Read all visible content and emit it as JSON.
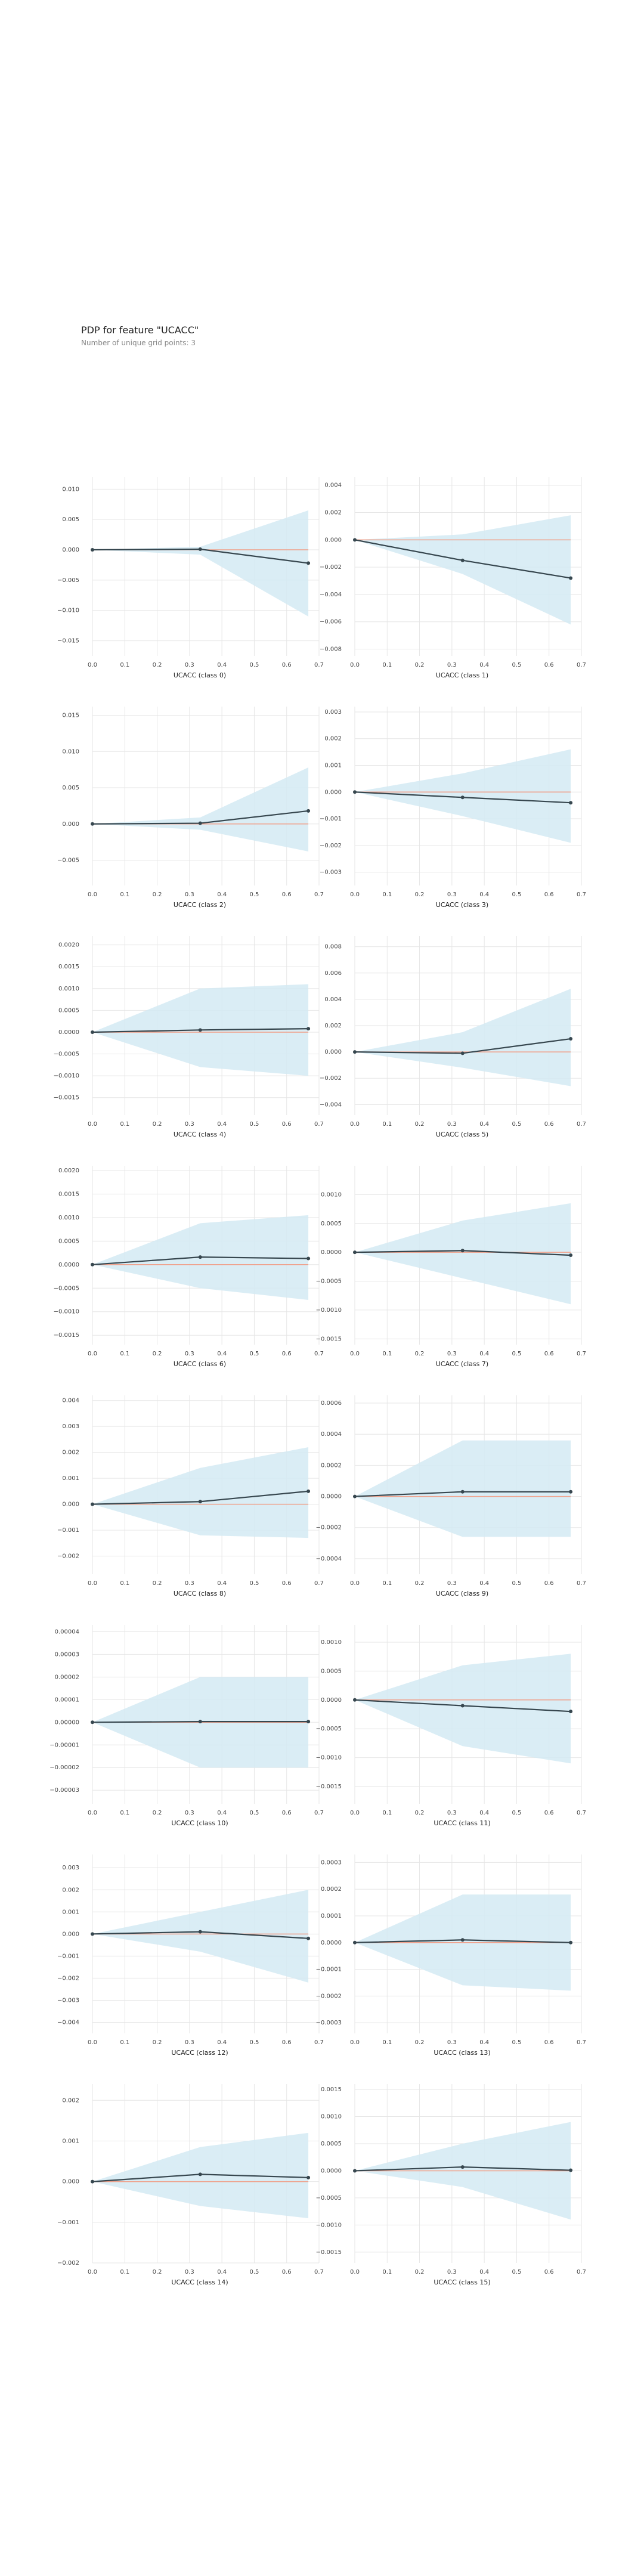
{
  "header": {
    "title": "PDP for feature \"UCACC\"",
    "subtitle": "Number of unique grid points: 3"
  },
  "colors": {
    "band": "#d4eaf3",
    "line": "#37474f",
    "zero": "#f0a08a",
    "grid": "#e6e6e6"
  },
  "chart_data": [
    {
      "type": "line",
      "xlabel": "UCACC (class 0)",
      "x": [
        0,
        0.333,
        0.667
      ],
      "y": [
        0,
        0.0001,
        -0.0022
      ],
      "band_upper": [
        0,
        0.0005,
        0.0065
      ],
      "band_lower": [
        0,
        -0.0008,
        -0.011
      ],
      "xticks": [
        "0.0",
        "0.1",
        "0.2",
        "0.3",
        "0.4",
        "0.5",
        "0.6",
        "0.7"
      ],
      "xlim": [
        0,
        0.7
      ],
      "yticks": [
        0.01,
        0.005,
        0.0,
        -0.005,
        -0.01,
        -0.015
      ],
      "ytick_labels": [
        "0.010",
        "0.005",
        "0.000",
        "−0.005",
        "−0.010",
        "−0.015"
      ],
      "ylim": [
        -0.0175,
        0.012
      ]
    },
    {
      "type": "line",
      "xlabel": "UCACC (class 1)",
      "x": [
        0,
        0.333,
        0.667
      ],
      "y": [
        0,
        -0.0015,
        -0.0028
      ],
      "band_upper": [
        0,
        0.0004,
        0.0018
      ],
      "band_lower": [
        0,
        -0.0025,
        -0.0062
      ],
      "xticks": [
        "0.0",
        "0.1",
        "0.2",
        "0.3",
        "0.4",
        "0.5",
        "0.6",
        "0.7"
      ],
      "xlim": [
        0,
        0.7
      ],
      "yticks": [
        0.004,
        0.002,
        0.0,
        -0.002,
        -0.004,
        -0.006,
        -0.008
      ],
      "ytick_labels": [
        "0.004",
        "0.002",
        "0.000",
        "−0.002",
        "−0.004",
        "−0.006",
        "−0.008"
      ],
      "ylim": [
        -0.0085,
        0.0046
      ]
    },
    {
      "type": "line",
      "xlabel": "UCACC (class 2)",
      "x": [
        0,
        0.333,
        0.667
      ],
      "y": [
        0,
        0.0001,
        0.0018
      ],
      "band_upper": [
        0,
        0.0009,
        0.0078
      ],
      "band_lower": [
        0,
        -0.0008,
        -0.0038
      ],
      "xticks": [
        "0.0",
        "0.1",
        "0.2",
        "0.3",
        "0.4",
        "0.5",
        "0.6",
        "0.7"
      ],
      "xlim": [
        0,
        0.7
      ],
      "yticks": [
        0.015,
        0.01,
        0.005,
        0.0,
        -0.005
      ],
      "ytick_labels": [
        "0.015",
        "0.010",
        "0.005",
        "0.000",
        "−0.005"
      ],
      "ylim": [
        -0.0085,
        0.0162
      ]
    },
    {
      "type": "line",
      "xlabel": "UCACC (class 3)",
      "x": [
        0,
        0.333,
        0.667
      ],
      "y": [
        0,
        -0.0002,
        -0.0004
      ],
      "band_upper": [
        0,
        0.0007,
        0.0016
      ],
      "band_lower": [
        0,
        -0.0009,
        -0.0019
      ],
      "xticks": [
        "0.0",
        "0.1",
        "0.2",
        "0.3",
        "0.4",
        "0.5",
        "0.6",
        "0.7"
      ],
      "xlim": [
        0,
        0.7
      ],
      "yticks": [
        0.003,
        0.002,
        0.001,
        0.0,
        -0.001,
        -0.002,
        -0.003
      ],
      "ytick_labels": [
        "0.003",
        "0.002",
        "0.001",
        "0.000",
        "−0.001",
        "−0.002",
        "−0.003"
      ],
      "ylim": [
        -0.0035,
        0.0032
      ]
    },
    {
      "type": "line",
      "xlabel": "UCACC (class 4)",
      "x": [
        0,
        0.333,
        0.667
      ],
      "y": [
        0,
        5e-05,
        8e-05
      ],
      "band_upper": [
        0,
        0.001,
        0.0011
      ],
      "band_lower": [
        0,
        -0.0008,
        -0.001
      ],
      "xticks": [
        "0.0",
        "0.1",
        "0.2",
        "0.3",
        "0.4",
        "0.5",
        "0.6",
        "0.7"
      ],
      "xlim": [
        0,
        0.7
      ],
      "yticks": [
        0.002,
        0.0015,
        0.001,
        0.0005,
        0.0,
        -0.0005,
        -0.001,
        -0.0015
      ],
      "ytick_labels": [
        "0.0020",
        "0.0015",
        "0.0010",
        "0.0005",
        "0.0000",
        "−0.0005",
        "−0.0010",
        "−0.0015"
      ],
      "ylim": [
        -0.0019,
        0.0022
      ]
    },
    {
      "type": "line",
      "xlabel": "UCACC (class 5)",
      "x": [
        0,
        0.333,
        0.667
      ],
      "y": [
        0,
        -0.0001,
        0.001
      ],
      "band_upper": [
        0,
        0.0015,
        0.0048
      ],
      "band_lower": [
        0,
        -0.0012,
        -0.0026
      ],
      "xticks": [
        "0.0",
        "0.1",
        "0.2",
        "0.3",
        "0.4",
        "0.5",
        "0.6",
        "0.7"
      ],
      "xlim": [
        0,
        0.7
      ],
      "yticks": [
        0.008,
        0.006,
        0.004,
        0.002,
        0.0,
        -0.002,
        -0.004
      ],
      "ytick_labels": [
        "0.008",
        "0.006",
        "0.004",
        "0.002",
        "0.000",
        "−0.002",
        "−0.004"
      ],
      "ylim": [
        -0.0048,
        0.0088
      ]
    },
    {
      "type": "line",
      "xlabel": "UCACC (class 6)",
      "x": [
        0,
        0.333,
        0.667
      ],
      "y": [
        0,
        0.00016,
        0.00013
      ],
      "band_upper": [
        0,
        0.00088,
        0.00105
      ],
      "band_lower": [
        0,
        -0.0005,
        -0.00075
      ],
      "xticks": [
        "0.0",
        "0.1",
        "0.2",
        "0.3",
        "0.4",
        "0.5",
        "0.6",
        "0.7"
      ],
      "xlim": [
        0,
        0.7
      ],
      "yticks": [
        0.002,
        0.0015,
        0.001,
        0.0005,
        0.0,
        -0.0005,
        -0.001,
        -0.0015
      ],
      "ytick_labels": [
        "0.0020",
        "0.0015",
        "0.0010",
        "0.0005",
        "0.0000",
        "−0.0005",
        "−0.0010",
        "−0.0015"
      ],
      "ylim": [
        -0.0017,
        0.0021
      ]
    },
    {
      "type": "line",
      "xlabel": "UCACC (class 7)",
      "x": [
        0,
        0.333,
        0.667
      ],
      "y": [
        0,
        3e-05,
        -5e-05
      ],
      "band_upper": [
        0,
        0.00055,
        0.00085
      ],
      "band_lower": [
        0,
        -0.00045,
        -0.0009
      ],
      "xticks": [
        "0.0",
        "0.1",
        "0.2",
        "0.3",
        "0.4",
        "0.5",
        "0.6",
        "0.7"
      ],
      "xlim": [
        0,
        0.7
      ],
      "yticks": [
        0.001,
        0.0005,
        0.0,
        -0.0005,
        -0.001,
        -0.0015
      ],
      "ytick_labels": [
        "0.0010",
        "0.0005",
        "0.0000",
        "−0.0005",
        "−0.0010",
        "−0.0015"
      ],
      "ylim": [
        -0.0016,
        0.0015
      ]
    },
    {
      "type": "line",
      "xlabel": "UCACC (class 8)",
      "x": [
        0,
        0.333,
        0.667
      ],
      "y": [
        0,
        0.0001,
        0.0005
      ],
      "band_upper": [
        0,
        0.0014,
        0.0022
      ],
      "band_lower": [
        0,
        -0.0012,
        -0.0013
      ],
      "xticks": [
        "0.0",
        "0.1",
        "0.2",
        "0.3",
        "0.4",
        "0.5",
        "0.6",
        "0.7"
      ],
      "xlim": [
        0,
        0.7
      ],
      "yticks": [
        0.004,
        0.003,
        0.002,
        0.001,
        0.0,
        -0.001,
        -0.002
      ],
      "ytick_labels": [
        "0.004",
        "0.003",
        "0.002",
        "0.001",
        "0.000",
        "−0.001",
        "−0.002"
      ],
      "ylim": [
        -0.0027,
        0.0042
      ]
    },
    {
      "type": "line",
      "xlabel": "UCACC (class 9)",
      "x": [
        0,
        0.333,
        0.667
      ],
      "y": [
        0,
        3e-05,
        3e-05
      ],
      "band_upper": [
        0,
        0.00036,
        0.00036
      ],
      "band_lower": [
        0,
        -0.00026,
        -0.00026
      ],
      "xticks": [
        "0.0",
        "0.1",
        "0.2",
        "0.3",
        "0.4",
        "0.5",
        "0.6",
        "0.7"
      ],
      "xlim": [
        0,
        0.7
      ],
      "yticks": [
        0.0006,
        0.0004,
        0.0002,
        0.0,
        -0.0002,
        -0.0004
      ],
      "ytick_labels": [
        "0.0006",
        "0.0004",
        "0.0002",
        "0.0000",
        "−0.0002",
        "−0.0004"
      ],
      "ylim": [
        -0.0005,
        0.00065
      ]
    },
    {
      "type": "line",
      "xlabel": "UCACC (class 10)",
      "x": [
        0,
        0.333,
        0.667
      ],
      "y": [
        0,
        3e-07,
        3e-07
      ],
      "band_upper": [
        0,
        2e-05,
        2e-05
      ],
      "band_lower": [
        0,
        -2e-05,
        -2e-05
      ],
      "xticks": [
        "0.0",
        "0.1",
        "0.2",
        "0.3",
        "0.4",
        "0.5",
        "0.6",
        "0.7"
      ],
      "xlim": [
        0,
        0.7
      ],
      "yticks": [
        4e-05,
        3e-05,
        2e-05,
        1e-05,
        0.0,
        -1e-05,
        -2e-05,
        -3e-05
      ],
      "ytick_labels": [
        "0.00004",
        "0.00003",
        "0.00002",
        "0.00001",
        "0.00000",
        "−0.00001",
        "−0.00002",
        "−0.00003"
      ],
      "ylim": [
        -3.6e-05,
        4.3e-05
      ]
    },
    {
      "type": "line",
      "xlabel": "UCACC (class 11)",
      "x": [
        0,
        0.333,
        0.667
      ],
      "y": [
        0,
        -0.0001,
        -0.0002
      ],
      "band_upper": [
        0,
        0.0006,
        0.0008
      ],
      "band_lower": [
        0,
        -0.0008,
        -0.0011
      ],
      "xticks": [
        "0.0",
        "0.1",
        "0.2",
        "0.3",
        "0.4",
        "0.5",
        "0.6",
        "0.7"
      ],
      "xlim": [
        0,
        0.7
      ],
      "yticks": [
        0.001,
        0.0005,
        0.0,
        -0.0005,
        -0.001,
        -0.0015
      ],
      "ytick_labels": [
        "0.0010",
        "0.0005",
        "0.0000",
        "−0.0005",
        "−0.0010",
        "−0.0015"
      ],
      "ylim": [
        -0.0018,
        0.0013
      ]
    },
    {
      "type": "line",
      "xlabel": "UCACC (class 12)",
      "x": [
        0,
        0.333,
        0.667
      ],
      "y": [
        0,
        0.0001,
        -0.0002
      ],
      "band_upper": [
        0,
        0.001,
        0.002
      ],
      "band_lower": [
        0,
        -0.0008,
        -0.0022
      ],
      "xticks": [
        "0.0",
        "0.1",
        "0.2",
        "0.3",
        "0.4",
        "0.5",
        "0.6",
        "0.7"
      ],
      "xlim": [
        0,
        0.7
      ],
      "yticks": [
        0.003,
        0.002,
        0.001,
        0.0,
        -0.001,
        -0.002,
        -0.003,
        -0.004
      ],
      "ytick_labels": [
        "0.003",
        "0.002",
        "0.001",
        "0.000",
        "−0.001",
        "−0.002",
        "−0.003",
        "−0.004"
      ],
      "ylim": [
        -0.0045,
        0.0036
      ]
    },
    {
      "type": "line",
      "xlabel": "UCACC (class 13)",
      "x": [
        0,
        0.333,
        0.667
      ],
      "y": [
        0,
        1e-05,
        0.0
      ],
      "band_upper": [
        0,
        0.00018,
        0.00018
      ],
      "band_lower": [
        0,
        -0.00016,
        -0.00018
      ],
      "xticks": [
        "0.0",
        "0.1",
        "0.2",
        "0.3",
        "0.4",
        "0.5",
        "0.6",
        "0.7"
      ],
      "xlim": [
        0,
        0.7
      ],
      "yticks": [
        0.0003,
        0.0002,
        0.0001,
        0.0,
        -0.0001,
        -0.0002,
        -0.0003
      ],
      "ytick_labels": [
        "0.0003",
        "0.0002",
        "0.0001",
        "0.0000",
        "−0.0001",
        "−0.0002",
        "−0.0003"
      ],
      "ylim": [
        -0.00034,
        0.00033
      ]
    },
    {
      "type": "line",
      "xlabel": "UCACC (class 14)",
      "x": [
        0,
        0.333,
        0.667
      ],
      "y": [
        0,
        0.00018,
        0.0001
      ],
      "band_upper": [
        0,
        0.00085,
        0.0012
      ],
      "band_lower": [
        0,
        -0.0006,
        -0.0009
      ],
      "xticks": [
        "0.0",
        "0.1",
        "0.2",
        "0.3",
        "0.4",
        "0.5",
        "0.6",
        "0.7"
      ],
      "xlim": [
        0,
        0.7
      ],
      "yticks": [
        0.002,
        0.001,
        0.0,
        -0.001,
        -0.002
      ],
      "ytick_labels": [
        "0.002",
        "0.001",
        "0.000",
        "−0.001",
        "−0.002"
      ],
      "ylim": [
        -0.002,
        0.0024
      ]
    },
    {
      "type": "line",
      "xlabel": "UCACC (class 15)",
      "x": [
        0,
        0.333,
        0.667
      ],
      "y": [
        0,
        7e-05,
        1e-05
      ],
      "band_upper": [
        0,
        0.0005,
        0.0009
      ],
      "band_lower": [
        0,
        -0.0003,
        -0.0009
      ],
      "xticks": [
        "0.0",
        "0.1",
        "0.2",
        "0.3",
        "0.4",
        "0.5",
        "0.6",
        "0.7"
      ],
      "xlim": [
        0,
        0.7
      ],
      "yticks": [
        0.0015,
        0.001,
        0.0005,
        0.0,
        -0.0005,
        -0.001,
        -0.0015
      ],
      "ytick_labels": [
        "0.0015",
        "0.0010",
        "0.0005",
        "0.0000",
        "−0.0005",
        "−0.0010",
        "−0.0015"
      ],
      "ylim": [
        -0.0017,
        0.0016
      ]
    }
  ]
}
